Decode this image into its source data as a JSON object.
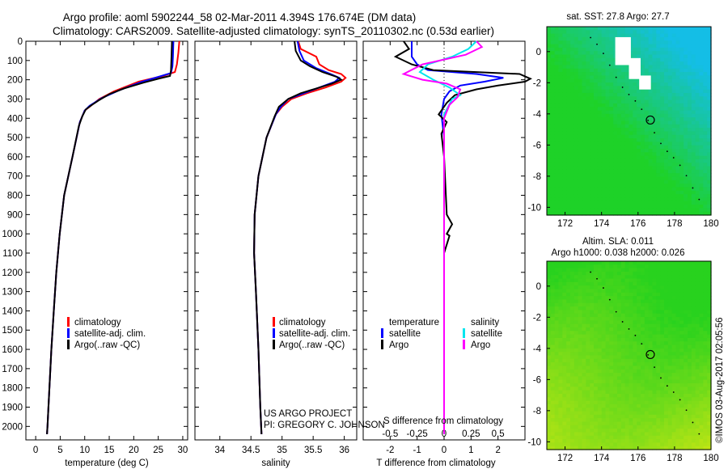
{
  "header": {
    "line1": "Argo profile: aoml 5902244_58 02-Mar-2011 4.394S 176.674E (DM data)",
    "line2": "Climatology: CARS2009. Satellite-adjusted climatology: synTS_20110302.nc (0.53d earlier)"
  },
  "side_text": "©IMOS 03-Aug-2017 02:05:56",
  "project": {
    "line1": "US ARGO PROJECT",
    "line2": "PI: GREGORY C. JOHNSON"
  },
  "colors": {
    "climatology": "#ff0000",
    "satellite": "#0000ff",
    "argo": "#000000",
    "argo_salinity": "#ff00ff",
    "sat_salinity": "#00e5ee"
  },
  "chart_data": [
    {
      "type": "line",
      "xlabel": "temperature (deg C)",
      "xlim": [
        -2,
        31
      ],
      "ylim": [
        2070,
        0
      ],
      "xticks": [
        "0",
        "5",
        "10",
        "15",
        "20",
        "25",
        "30"
      ],
      "yticks": [
        "0",
        "100",
        "200",
        "300",
        "400",
        "500",
        "600",
        "700",
        "800",
        "900",
        "1000",
        "1100",
        "1200",
        "1300",
        "1400",
        "1500",
        "1600",
        "1700",
        "1800",
        "1900",
        "2000"
      ],
      "legend": [
        "climatology",
        "satellite-adj. clim.",
        "Argo(..raw -QC)"
      ],
      "series": [
        {
          "name": "climatology",
          "points": [
            [
              29.3,
              0
            ],
            [
              29.1,
              60
            ],
            [
              28.8,
              120
            ],
            [
              28.4,
              160
            ],
            [
              26,
              180
            ],
            [
              21,
              210
            ],
            [
              16,
              260
            ],
            [
              13,
              300
            ],
            [
              11,
              340
            ],
            [
              10,
              360
            ],
            [
              9,
              420
            ],
            [
              7.5,
              600
            ],
            [
              5.8,
              800
            ],
            [
              4.9,
              1000
            ],
            [
              4.2,
              1200
            ],
            [
              3.7,
              1400
            ],
            [
              3.2,
              1600
            ],
            [
              2.8,
              1800
            ],
            [
              2.4,
              2000
            ],
            [
              2.3,
              2040
            ]
          ]
        },
        {
          "name": "satellite-adj. clim.",
          "points": [
            [
              28.1,
              0
            ],
            [
              28,
              80
            ],
            [
              27.9,
              130
            ],
            [
              27.6,
              165
            ],
            [
              25,
              185
            ],
            [
              21.5,
              212
            ],
            [
              17,
              255
            ],
            [
              13.5,
              295
            ],
            [
              11,
              335
            ],
            [
              10,
              360
            ],
            [
              9,
              420
            ],
            [
              7.5,
              600
            ],
            [
              5.8,
              800
            ],
            [
              4.9,
              1000
            ],
            [
              4.2,
              1200
            ],
            [
              3.7,
              1400
            ],
            [
              3.2,
              1600
            ],
            [
              2.8,
              1800
            ],
            [
              2.4,
              2000
            ],
            [
              2.3,
              2040
            ]
          ]
        },
        {
          "name": "Argo(..raw -QC)",
          "points": [
            [
              27.8,
              0
            ],
            [
              27.7,
              80
            ],
            [
              27.6,
              150
            ],
            [
              27.4,
              180
            ],
            [
              25,
              195
            ],
            [
              22,
              215
            ],
            [
              18,
              245
            ],
            [
              15,
              275
            ],
            [
              13,
              305
            ],
            [
              11.5,
              330
            ],
            [
              10.2,
              355
            ],
            [
              9.5,
              390
            ],
            [
              8.8,
              440
            ],
            [
              7.5,
              600
            ],
            [
              5.8,
              800
            ],
            [
              4.9,
              1000
            ],
            [
              4.2,
              1200
            ],
            [
              3.7,
              1400
            ],
            [
              3.2,
              1600
            ],
            [
              2.8,
              1800
            ],
            [
              2.4,
              2000
            ],
            [
              2.3,
              2040
            ]
          ]
        }
      ]
    },
    {
      "type": "line",
      "xlabel": "salinity",
      "xlim": [
        33.6,
        36.2
      ],
      "ylim": [
        2070,
        0
      ],
      "xticks": [
        "34",
        "34.5",
        "35",
        "35.5",
        "36"
      ],
      "legend": [
        "climatology",
        "satellite-adj. clim.",
        "Argo(..raw -QC)"
      ],
      "series": [
        {
          "name": "climatology",
          "points": [
            [
              35.26,
              0
            ],
            [
              35.3,
              40
            ],
            [
              35.55,
              80
            ],
            [
              35.6,
              120
            ],
            [
              35.75,
              150
            ],
            [
              35.95,
              170
            ],
            [
              36.02,
              190
            ],
            [
              35.95,
              210
            ],
            [
              35.7,
              240
            ],
            [
              35.4,
              270
            ],
            [
              35.15,
              300
            ],
            [
              35,
              340
            ],
            [
              34.9,
              380
            ],
            [
              34.75,
              500
            ],
            [
              34.62,
              700
            ],
            [
              34.56,
              900
            ],
            [
              34.55,
              1100
            ],
            [
              34.58,
              1300
            ],
            [
              34.62,
              1600
            ],
            [
              34.65,
              1900
            ],
            [
              34.67,
              2040
            ]
          ]
        },
        {
          "name": "satellite-adj. clim.",
          "points": [
            [
              35.25,
              0
            ],
            [
              35.28,
              50
            ],
            [
              35.35,
              100
            ],
            [
              35.55,
              140
            ],
            [
              35.78,
              170
            ],
            [
              35.92,
              190
            ],
            [
              35.85,
              210
            ],
            [
              35.6,
              240
            ],
            [
              35.35,
              270
            ],
            [
              35.1,
              300
            ],
            [
              34.98,
              340
            ],
            [
              34.9,
              380
            ],
            [
              34.75,
              500
            ],
            [
              34.62,
              700
            ],
            [
              34.56,
              900
            ],
            [
              34.55,
              1100
            ],
            [
              34.58,
              1300
            ],
            [
              34.62,
              1600
            ],
            [
              34.65,
              1900
            ],
            [
              34.67,
              2040
            ]
          ]
        },
        {
          "name": "Argo(..raw -QC)",
          "points": [
            [
              35.2,
              0
            ],
            [
              35.22,
              50
            ],
            [
              35.3,
              100
            ],
            [
              35.45,
              130
            ],
            [
              35.65,
              160
            ],
            [
              35.88,
              185
            ],
            [
              35.95,
              200
            ],
            [
              35.8,
              220
            ],
            [
              35.55,
              245
            ],
            [
              35.3,
              270
            ],
            [
              35.1,
              300
            ],
            [
              34.95,
              340
            ],
            [
              34.88,
              390
            ],
            [
              34.75,
              500
            ],
            [
              34.62,
              700
            ],
            [
              34.56,
              900
            ],
            [
              34.55,
              1100
            ],
            [
              34.58,
              1300
            ],
            [
              34.62,
              1600
            ],
            [
              34.65,
              1900
            ],
            [
              34.67,
              2040
            ]
          ]
        }
      ]
    },
    {
      "type": "line",
      "xlabel": "T difference from climatology",
      "xlabel_top": "S difference from climatology",
      "xlim": [
        -3,
        3
      ],
      "ylim": [
        2070,
        0
      ],
      "xticks": [
        "-2",
        "-1",
        "0",
        "1",
        "2"
      ],
      "xticks_top": [
        "-0.5",
        "-0.25",
        "0",
        "0.25",
        "0.5"
      ],
      "legend": {
        "temperature": [
          "satellite",
          "Argo"
        ],
        "salinity": [
          "satellite",
          "Argo"
        ],
        "temperature_title": "temperature",
        "salinity_title": "salinity"
      },
      "series": [
        {
          "name": "temperature satellite",
          "points": [
            [
              -1.2,
              0
            ],
            [
              -1.2,
              80
            ],
            [
              -1,
              120
            ],
            [
              -0.6,
              150
            ],
            [
              1.2,
              170
            ],
            [
              2.2,
              190
            ],
            [
              1.5,
              210
            ],
            [
              0.6,
              230
            ],
            [
              0.2,
              260
            ],
            [
              0,
              300
            ],
            [
              -0.1,
              380
            ],
            [
              0,
              500
            ],
            [
              0,
              1000
            ],
            [
              0,
              2040
            ]
          ]
        },
        {
          "name": "temperature Argo",
          "points": [
            [
              -1.5,
              0
            ],
            [
              -1.3,
              40
            ],
            [
              -1.8,
              80
            ],
            [
              -1.2,
              120
            ],
            [
              -0.4,
              150
            ],
            [
              2.8,
              170
            ],
            [
              3.2,
              195
            ],
            [
              3.0,
              210
            ],
            [
              2.0,
              230
            ],
            [
              1.2,
              250
            ],
            [
              0.4,
              280
            ],
            [
              0.1,
              320
            ],
            [
              -0.2,
              380
            ],
            [
              0.1,
              420
            ],
            [
              -0.1,
              480
            ],
            [
              0,
              600
            ],
            [
              0.1,
              900
            ],
            [
              0.3,
              950
            ],
            [
              0.1,
              1000
            ],
            [
              0.2,
              1010
            ],
            [
              0,
              1100
            ],
            [
              0,
              2040
            ]
          ]
        },
        {
          "name": "salinity satellite",
          "points": [
            [
              1.2,
              0
            ],
            [
              0.9,
              40
            ],
            [
              0.3,
              80
            ],
            [
              -0.6,
              120
            ],
            [
              -0.9,
              160
            ],
            [
              -0.4,
              200
            ],
            [
              0.2,
              240
            ],
            [
              0.6,
              280
            ],
            [
              0.3,
              300
            ],
            [
              0,
              380
            ],
            [
              0,
              1000
            ],
            [
              0,
              2040
            ]
          ]
        },
        {
          "name": "salinity Argo",
          "points": [
            [
              1.2,
              0
            ],
            [
              1.4,
              30
            ],
            [
              0.8,
              70
            ],
            [
              -0.8,
              120
            ],
            [
              -1.5,
              170
            ],
            [
              -0.8,
              200
            ],
            [
              0.1,
              220
            ],
            [
              0.6,
              250
            ],
            [
              0.5,
              290
            ],
            [
              0.2,
              330
            ],
            [
              0,
              400
            ],
            [
              0,
              2040
            ]
          ]
        }
      ]
    },
    {
      "type": "heatmap",
      "title": "sat. SST: 27.8 Argo: 27.7",
      "xticks": [
        "172",
        "174",
        "176",
        "178",
        "180"
      ],
      "yticks": [
        "0",
        "-2",
        "-4",
        "-6",
        "-8",
        "-10"
      ],
      "xlim": [
        171,
        180
      ],
      "ylim": [
        -10.5,
        1.6
      ],
      "marker": [
        176.674,
        -4.394
      ]
    },
    {
      "type": "heatmap",
      "title": "Altim. SLA: 0.011",
      "subtitle": "Argo h1000: 0.038 h2000: 0.026",
      "xticks": [
        "172",
        "174",
        "176",
        "178",
        "180"
      ],
      "yticks": [
        "0",
        "-2",
        "-4",
        "-6",
        "-8",
        "-10"
      ],
      "xlim": [
        171,
        180
      ],
      "ylim": [
        -10.5,
        1.6
      ],
      "marker": [
        176.674,
        -4.394
      ]
    }
  ]
}
